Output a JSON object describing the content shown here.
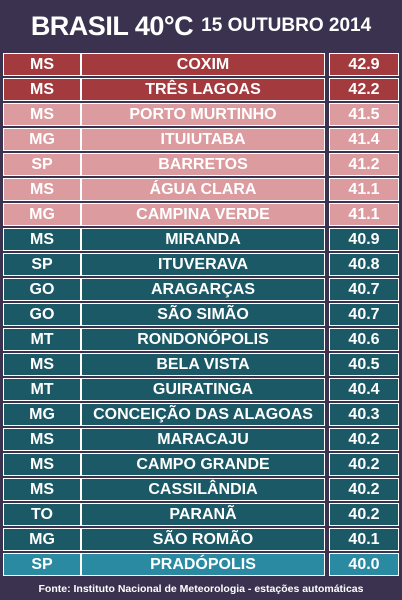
{
  "header": {
    "title": "BRASIL 40°C",
    "date": "15 OUTUBRO 2014"
  },
  "colors": {
    "dark_red": "#a33a3e",
    "pink": "#dc9b9f",
    "teal": "#1b5966",
    "teal_highlight": "#2a8aa1"
  },
  "rows": [
    {
      "state": "MS",
      "city": "COXIM",
      "temp": "42.9",
      "tier": "dark_red"
    },
    {
      "state": "MS",
      "city": "TRÊS LAGOAS",
      "temp": "42.2",
      "tier": "dark_red"
    },
    {
      "state": "MS",
      "city": "PORTO MURTINHO",
      "temp": "41.5",
      "tier": "pink"
    },
    {
      "state": "MG",
      "city": "ITUIUTABA",
      "temp": "41.4",
      "tier": "pink"
    },
    {
      "state": "SP",
      "city": "BARRETOS",
      "temp": "41.2",
      "tier": "pink"
    },
    {
      "state": "MS",
      "city": "ÁGUA CLARA",
      "temp": "41.1",
      "tier": "pink"
    },
    {
      "state": "MG",
      "city": "CAMPINA VERDE",
      "temp": "41.1",
      "tier": "pink"
    },
    {
      "state": "MS",
      "city": "MIRANDA",
      "temp": "40.9",
      "tier": "teal"
    },
    {
      "state": "SP",
      "city": "ITUVERAVA",
      "temp": "40.8",
      "tier": "teal"
    },
    {
      "state": "GO",
      "city": "ARAGARÇAS",
      "temp": "40.7",
      "tier": "teal"
    },
    {
      "state": "GO",
      "city": "SÃO SIMÃO",
      "temp": "40.7",
      "tier": "teal"
    },
    {
      "state": "MT",
      "city": "RONDONÓPOLIS",
      "temp": "40.6",
      "tier": "teal"
    },
    {
      "state": "MS",
      "city": "BELA VISTA",
      "temp": "40.5",
      "tier": "teal"
    },
    {
      "state": "MT",
      "city": "GUIRATINGA",
      "temp": "40.4",
      "tier": "teal"
    },
    {
      "state": "MG",
      "city": "CONCEIÇÃO DAS ALAGOAS",
      "temp": "40.3",
      "tier": "teal"
    },
    {
      "state": "MS",
      "city": "MARACAJU",
      "temp": "40.2",
      "tier": "teal"
    },
    {
      "state": "MS",
      "city": "CAMPO GRANDE",
      "temp": "40.2",
      "tier": "teal"
    },
    {
      "state": "MS",
      "city": "CASSILÂNDIA",
      "temp": "40.2",
      "tier": "teal"
    },
    {
      "state": "TO",
      "city": "PARANÃ",
      "temp": "40.2",
      "tier": "teal"
    },
    {
      "state": "MG",
      "city": "SÃO ROMÃO",
      "temp": "40.1",
      "tier": "teal"
    },
    {
      "state": "SP",
      "city": "PRADÓPOLIS",
      "temp": "40.0",
      "tier": "teal_highlight"
    }
  ],
  "footer": {
    "source": "Fonte: Instituto Nacional de Meteorologia - estações automáticas"
  }
}
